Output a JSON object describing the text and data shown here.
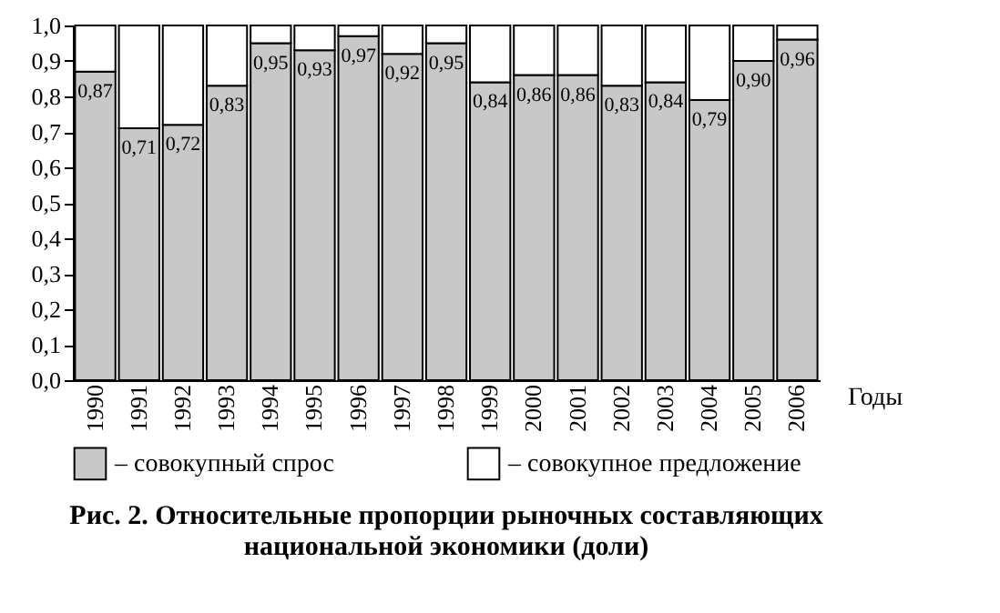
{
  "chart_data": {
    "type": "bar",
    "title": "Рис. 2. Относительные пропорции рыночных составляющих национальной экономики (доли)",
    "xlabel": "Годы",
    "categories": [
      "1990",
      "1991",
      "1992",
      "1993",
      "1994",
      "1995",
      "1996",
      "1997",
      "1998",
      "1999",
      "2000",
      "2001",
      "2002",
      "2003",
      "2004",
      "2005",
      "2006"
    ],
    "stacked": true,
    "series": [
      {
        "name": "– совокупный спрос",
        "color": "#c8c8c8",
        "values": [
          0.87,
          0.71,
          0.72,
          0.83,
          0.95,
          0.93,
          0.97,
          0.92,
          0.95,
          0.84,
          0.86,
          0.86,
          0.83,
          0.84,
          0.79,
          0.9,
          0.96
        ],
        "value_labels": [
          "0,87",
          "0,71",
          "0,72",
          "0,83",
          "0,95",
          "0,93",
          "0,97",
          "0,92",
          "0,95",
          "0,84",
          "0,86",
          "0,86",
          "0,83",
          "0,84",
          "0,79",
          "0,90",
          "0,96"
        ]
      },
      {
        "name": "– совокупное предложение",
        "color": "#ffffff",
        "values": [
          0.13,
          0.29,
          0.28,
          0.17,
          0.05,
          0.07,
          0.03,
          0.08,
          0.05,
          0.16,
          0.14,
          0.14,
          0.17,
          0.16,
          0.21,
          0.1,
          0.04
        ]
      }
    ],
    "ylim": [
      0,
      1.0
    ],
    "yticks": [
      {
        "value": 0,
        "label": "0,0"
      },
      {
        "value": 0.1,
        "label": "0,1"
      },
      {
        "value": 0.2,
        "label": "0,2"
      },
      {
        "value": 0.3,
        "label": "0,3"
      },
      {
        "value": 0.4,
        "label": "0,4"
      },
      {
        "value": 0.5,
        "label": "0,5"
      },
      {
        "value": 0.6,
        "label": "0,6"
      },
      {
        "value": 0.7,
        "label": "0,7"
      },
      {
        "value": 0.8,
        "label": "0,8"
      },
      {
        "value": 0.9,
        "label": "0,9"
      },
      {
        "value": 1.0,
        "label": "1,0"
      }
    ],
    "grid": false,
    "legend": "bottom"
  }
}
